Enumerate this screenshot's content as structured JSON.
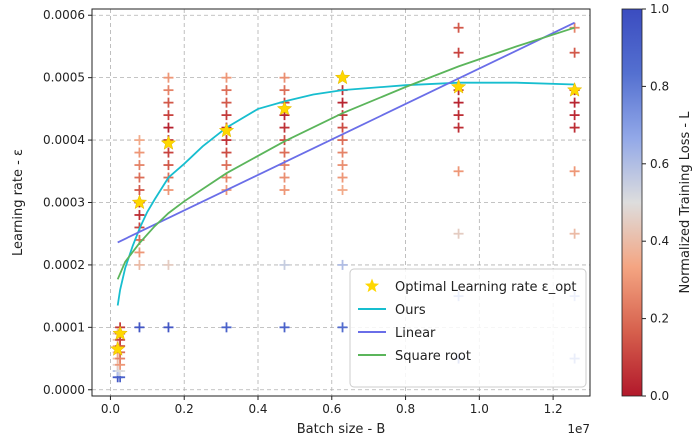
{
  "chart_data": {
    "type": "scatter",
    "xlabel": "Batch size - B",
    "ylabel": "Learning rate - ε",
    "x_offset_label": "1e7",
    "xlim": [
      -500000,
      13000000
    ],
    "ylim": [
      -1e-05,
      0.00061
    ],
    "x_ticks": [
      0,
      2000000,
      4000000,
      6000000,
      8000000,
      10000000,
      12000000
    ],
    "x_tick_labels": [
      "0.0",
      "0.2",
      "0.4",
      "0.6",
      "0.8",
      "1.0",
      "1.2"
    ],
    "y_ticks": [
      0,
      0.0001,
      0.0002,
      0.0003,
      0.0004,
      0.0005,
      0.0006
    ],
    "y_tick_labels": [
      "0.0000",
      "0.0001",
      "0.0002",
      "0.0003",
      "0.0004",
      "0.0005",
      "0.0006"
    ],
    "grid": true,
    "legend_position": "bottom-right",
    "colorbar": {
      "label": "Normalized Training Loss - L",
      "ticks": [
        0,
        0.2,
        0.4,
        0.6,
        0.8,
        1.0
      ],
      "tick_labels": [
        "0.0",
        "0.2",
        "0.4",
        "0.6",
        "0.8",
        "1.0"
      ],
      "colors": [
        "#b2182b",
        "#d6604d",
        "#f4a582",
        "#dddddd",
        "#92a8e8",
        "#5470d0",
        "#3b4cc0"
      ]
    },
    "grid_points": [
      {
        "x": 196608,
        "lr": [
          2e-05,
          3e-05,
          4e-05,
          5e-05,
          6e-05,
          7e-05,
          8e-05,
          9e-05
        ],
        "loss": [
          0.95,
          0.6,
          0.45,
          0.4,
          0.35,
          0.35,
          0.4,
          0.42
        ]
      },
      {
        "x": 262144,
        "lr": [
          2e-05,
          3e-05,
          4e-05,
          5e-05,
          6e-05,
          7e-05,
          8e-05,
          9e-05,
          0.0001
        ],
        "loss": [
          0.9,
          0.5,
          0.3,
          0.25,
          0.2,
          0.15,
          0.1,
          0.12,
          0.08
        ]
      },
      {
        "x": 786432,
        "lr": [
          0.0001,
          0.0002,
          0.00022,
          0.00024,
          0.00026,
          0.00028,
          0.0003,
          0.00032,
          0.00034,
          0.00036,
          0.00038,
          0.0004
        ],
        "loss": [
          0.95,
          0.4,
          0.3,
          0.2,
          0.1,
          0.05,
          0.03,
          0.15,
          0.2,
          0.25,
          0.3,
          0.35
        ]
      },
      {
        "x": 1572864,
        "lr": [
          0.0001,
          0.0002,
          0.00032,
          0.00034,
          0.00036,
          0.00038,
          0.0004,
          0.00042,
          0.00044,
          0.00046,
          0.00048,
          0.0005
        ],
        "loss": [
          0.95,
          0.45,
          0.3,
          0.2,
          0.15,
          0.1,
          0.05,
          0.02,
          0.1,
          0.15,
          0.25,
          0.3
        ]
      },
      {
        "x": 3145728,
        "lr": [
          0.0001,
          0.00032,
          0.00034,
          0.00036,
          0.00038,
          0.0004,
          0.00042,
          0.00044,
          0.00046,
          0.00048,
          0.0005
        ],
        "loss": [
          0.9,
          0.3,
          0.25,
          0.2,
          0.12,
          0.06,
          0.03,
          0.08,
          0.15,
          0.2,
          0.3
        ]
      },
      {
        "x": 4718592,
        "lr": [
          0.0001,
          0.0002,
          0.00032,
          0.00034,
          0.00036,
          0.00038,
          0.0004,
          0.00042,
          0.00044,
          0.00046,
          0.00048,
          0.0005
        ],
        "loss": [
          0.9,
          0.55,
          0.3,
          0.28,
          0.25,
          0.2,
          0.12,
          0.06,
          0.03,
          0.1,
          0.2,
          0.28
        ]
      },
      {
        "x": 6291456,
        "lr": [
          0.0001,
          0.0002,
          0.00032,
          0.00034,
          0.00036,
          0.00038,
          0.0004,
          0.00042,
          0.00044,
          0.00046,
          0.00048
        ],
        "loss": [
          0.85,
          0.6,
          0.35,
          0.3,
          0.28,
          0.25,
          0.2,
          0.12,
          0.08,
          0.03,
          0.05
        ]
      },
      {
        "x": 9437184,
        "lr": [
          5e-05,
          0.00015,
          0.00025,
          0.00035,
          0.00042,
          0.00044,
          0.00046,
          0.00048,
          0.00054,
          0.00058
        ],
        "loss": [
          0.85,
          0.75,
          0.45,
          0.3,
          0.05,
          0.05,
          0.03,
          0.04,
          0.1,
          0.15
        ]
      },
      {
        "x": 12582912,
        "lr": [
          5e-05,
          0.00015,
          0.00025,
          0.00035,
          0.00042,
          0.00044,
          0.00046,
          0.00048,
          0.00054,
          0.00058
        ],
        "loss": [
          0.75,
          0.7,
          0.4,
          0.3,
          0.05,
          0.04,
          0.03,
          0.04,
          0.15,
          0.25
        ]
      }
    ],
    "series": [
      {
        "name": "Optimal Learning rate ε_opt",
        "kind": "star",
        "color": "#ffd700",
        "x": [
          196608,
          262144,
          786432,
          1572864,
          3145728,
          4718592,
          6291456,
          9437184,
          12582912
        ],
        "y": [
          6.5e-05,
          9e-05,
          0.0003,
          0.000395,
          0.000415,
          0.00045,
          0.0005,
          0.000485,
          0.00048
        ]
      },
      {
        "name": "Ours",
        "kind": "line",
        "color": "#17becf",
        "x": [
          196608,
          262144,
          400000,
          600000,
          800000,
          1000000,
          1200000,
          1572864,
          2000000,
          2500000,
          3145728,
          4000000,
          4718592,
          5500000,
          6291456,
          8000000,
          9437184,
          11000000,
          12582912
        ],
        "y": [
          0.000135,
          0.00016,
          0.000195,
          0.00023,
          0.00026,
          0.000285,
          0.000305,
          0.00034,
          0.000362,
          0.00039,
          0.00042,
          0.00045,
          0.000462,
          0.000473,
          0.00048,
          0.000488,
          0.000492,
          0.000492,
          0.000489
        ]
      },
      {
        "name": "Linear",
        "kind": "line",
        "color": "#6a6ee8",
        "x": [
          196608,
          12582912
        ],
        "y": [
          0.000236,
          0.000588
        ]
      },
      {
        "name": "Square root",
        "kind": "line",
        "color": "#5bb55b",
        "x": [
          196608,
          400000,
          786432,
          1200000,
          1572864,
          2000000,
          3145728,
          4718592,
          6291456,
          8000000,
          9437184,
          11000000,
          12582912
        ],
        "y": [
          0.000177,
          0.000205,
          0.000235,
          0.000262,
          0.000283,
          0.000302,
          0.000347,
          0.000398,
          0.000443,
          0.000485,
          0.000518,
          0.00055,
          0.00058
        ]
      }
    ]
  }
}
